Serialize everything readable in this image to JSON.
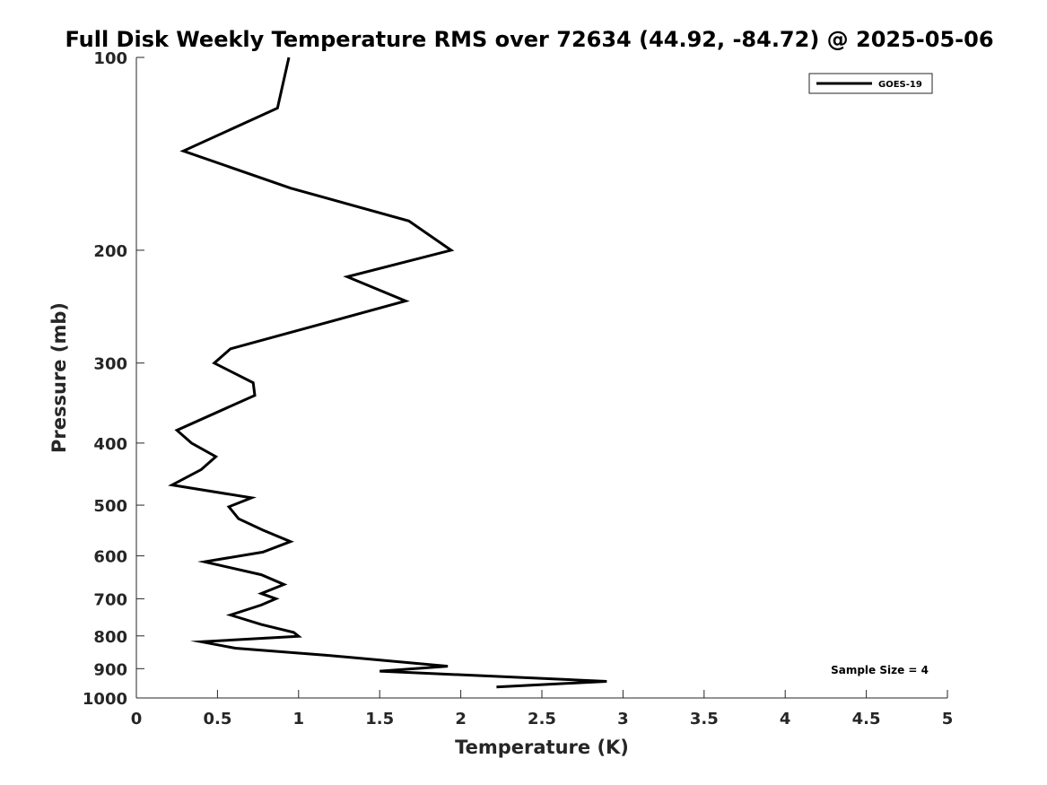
{
  "chart_data": {
    "type": "line",
    "title": "Full Disk Weekly Temperature RMS over 72634 (44.92, -84.72) @ 2025-05-06",
    "xlabel": "Temperature (K)",
    "ylabel": "Pressure (mb)",
    "xlim": [
      0,
      5
    ],
    "ylim": [
      1000,
      100
    ],
    "yscale": "log",
    "x_ticks": [
      "0",
      "0.5",
      "1",
      "1.5",
      "2",
      "2.5",
      "3",
      "3.5",
      "4",
      "4.5",
      "5"
    ],
    "y_ticks": [
      "100",
      "200",
      "300",
      "400",
      "500",
      "600",
      "700",
      "800",
      "900",
      "1000"
    ],
    "grid": false,
    "legend_position": "top-right",
    "annotation": "Sample Size = 4",
    "series": [
      {
        "name": "GOES-19",
        "color": "#000000",
        "points": [
          {
            "x": 0.94,
            "p": 100
          },
          {
            "x": 0.87,
            "p": 120
          },
          {
            "x": 0.29,
            "p": 140
          },
          {
            "x": 0.95,
            "p": 160
          },
          {
            "x": 1.68,
            "p": 180
          },
          {
            "x": 1.94,
            "p": 200
          },
          {
            "x": 1.3,
            "p": 220
          },
          {
            "x": 1.66,
            "p": 240
          },
          {
            "x": 0.58,
            "p": 285
          },
          {
            "x": 0.48,
            "p": 300
          },
          {
            "x": 0.72,
            "p": 322
          },
          {
            "x": 0.73,
            "p": 337
          },
          {
            "x": 0.25,
            "p": 382
          },
          {
            "x": 0.34,
            "p": 400
          },
          {
            "x": 0.49,
            "p": 420
          },
          {
            "x": 0.4,
            "p": 440
          },
          {
            "x": 0.22,
            "p": 465
          },
          {
            "x": 0.71,
            "p": 487
          },
          {
            "x": 0.57,
            "p": 503
          },
          {
            "x": 0.63,
            "p": 525
          },
          {
            "x": 0.78,
            "p": 547
          },
          {
            "x": 0.95,
            "p": 570
          },
          {
            "x": 0.78,
            "p": 592
          },
          {
            "x": 0.42,
            "p": 613
          },
          {
            "x": 0.77,
            "p": 642
          },
          {
            "x": 0.91,
            "p": 665
          },
          {
            "x": 0.77,
            "p": 687
          },
          {
            "x": 0.86,
            "p": 700
          },
          {
            "x": 0.77,
            "p": 716
          },
          {
            "x": 0.58,
            "p": 742
          },
          {
            "x": 0.77,
            "p": 768
          },
          {
            "x": 0.97,
            "p": 790
          },
          {
            "x": 1.0,
            "p": 801
          },
          {
            "x": 0.4,
            "p": 817
          },
          {
            "x": 0.61,
            "p": 836
          },
          {
            "x": 1.18,
            "p": 858
          },
          {
            "x": 1.92,
            "p": 892
          },
          {
            "x": 1.5,
            "p": 908
          },
          {
            "x": 2.9,
            "p": 942
          },
          {
            "x": 2.22,
            "p": 961
          }
        ]
      }
    ]
  }
}
